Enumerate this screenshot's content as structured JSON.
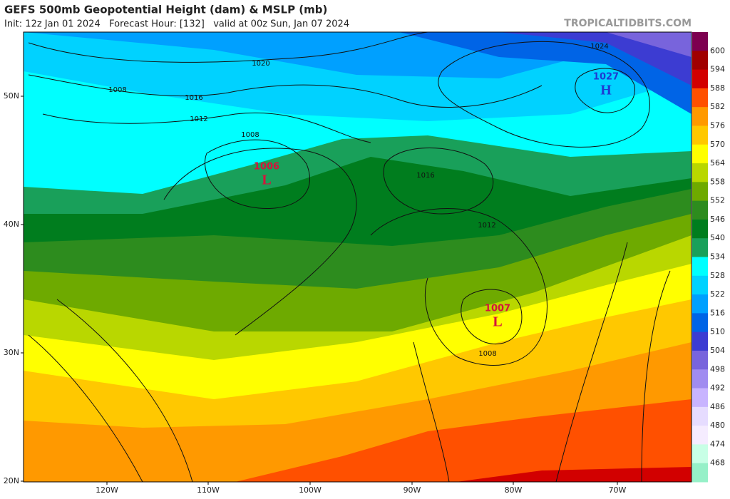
{
  "header": {
    "title": "GEFS 500mb Geopotential Height (dam) & MSLP (mb)",
    "subtitle": "Init: 12z Jan 01 2024   Forecast Hour: [132]   valid at 00z Sun, Jan 07 2024",
    "watermark": "TROPICALTIDBITS.COM"
  },
  "colorbar": {
    "levels": [
      600,
      594,
      588,
      582,
      576,
      570,
      564,
      558,
      552,
      546,
      540,
      534,
      528,
      522,
      516,
      510,
      504,
      498,
      492,
      486,
      480,
      474,
      468
    ],
    "colors": [
      "#7d0050",
      "#a00000",
      "#d20000",
      "#ff5000",
      "#ff9900",
      "#ffc800",
      "#ffff00",
      "#b9d700",
      "#6eaa00",
      "#2d8c1e",
      "#007d1e",
      "#19a05a",
      "#00ffff",
      "#00d2ff",
      "#00a0ff",
      "#0064e6",
      "#3c3cd2",
      "#7864dc",
      "#a08cf0",
      "#c8b4ff",
      "#e6dcff",
      "#f5ecff",
      "#c8ffe6",
      "#96f0c8"
    ]
  },
  "map": {
    "lat_labels": [
      "50N",
      "40N",
      "30N",
      "20N"
    ],
    "lon_labels": [
      "120W",
      "110W",
      "100W",
      "90W",
      "80W",
      "70W"
    ],
    "contour_labels": [
      "1020",
      "1016",
      "1008",
      "1012",
      "1008",
      "1016",
      "1012",
      "1008",
      "1024"
    ],
    "centers": [
      {
        "pressure": "1006",
        "letter": "L"
      },
      {
        "pressure": "1007",
        "letter": "L"
      },
      {
        "pressure": "1027",
        "letter": "H"
      }
    ]
  }
}
